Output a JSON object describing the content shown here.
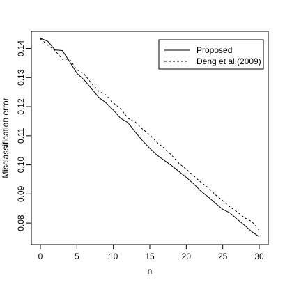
{
  "chart_data": {
    "type": "line",
    "title": "",
    "xlabel": "n",
    "ylabel": "Misclassification error",
    "xlim": [
      0,
      30
    ],
    "ylim": [
      0.075,
      0.143
    ],
    "xticks": [
      0,
      5,
      10,
      15,
      20,
      25,
      30
    ],
    "yticks": [
      0.08,
      0.09,
      0.1,
      0.11,
      0.12,
      0.13,
      0.14
    ],
    "ytick_labels": [
      "0.08",
      "0.09",
      "0.10",
      "0.11",
      "0.12",
      "0.13",
      "0.14"
    ],
    "grid": false,
    "legend_position": "top-right",
    "x": [
      0,
      1,
      2,
      3,
      4,
      5,
      6,
      7,
      8,
      9,
      10,
      11,
      12,
      13,
      14,
      15,
      16,
      17,
      18,
      19,
      20,
      21,
      22,
      23,
      24,
      25,
      26,
      27,
      28,
      29,
      30
    ],
    "series": [
      {
        "name": "Proposed",
        "style": "solid",
        "values": [
          0.1435,
          0.1425,
          0.1395,
          0.1393,
          0.1355,
          0.1315,
          0.1292,
          0.1262,
          0.1232,
          0.1213,
          0.1188,
          0.116,
          0.1145,
          0.1113,
          0.1083,
          0.1057,
          0.1033,
          0.1015,
          0.0997,
          0.0977,
          0.0957,
          0.0935,
          0.091,
          0.089,
          0.0868,
          0.0847,
          0.0835,
          0.0813,
          0.0792,
          0.077,
          0.0753
        ]
      },
      {
        "name": "Deng et al.(2009)",
        "style": "dashed",
        "values": [
          0.1433,
          0.1412,
          0.1393,
          0.1363,
          0.1363,
          0.1327,
          0.1312,
          0.128,
          0.1253,
          0.124,
          0.1213,
          0.1193,
          0.116,
          0.1147,
          0.1123,
          0.1103,
          0.1077,
          0.1057,
          0.1033,
          0.1005,
          0.0985,
          0.0963,
          0.094,
          0.0922,
          0.0897,
          0.0877,
          0.0855,
          0.0838,
          0.0818,
          0.0805,
          0.0775
        ]
      }
    ]
  }
}
